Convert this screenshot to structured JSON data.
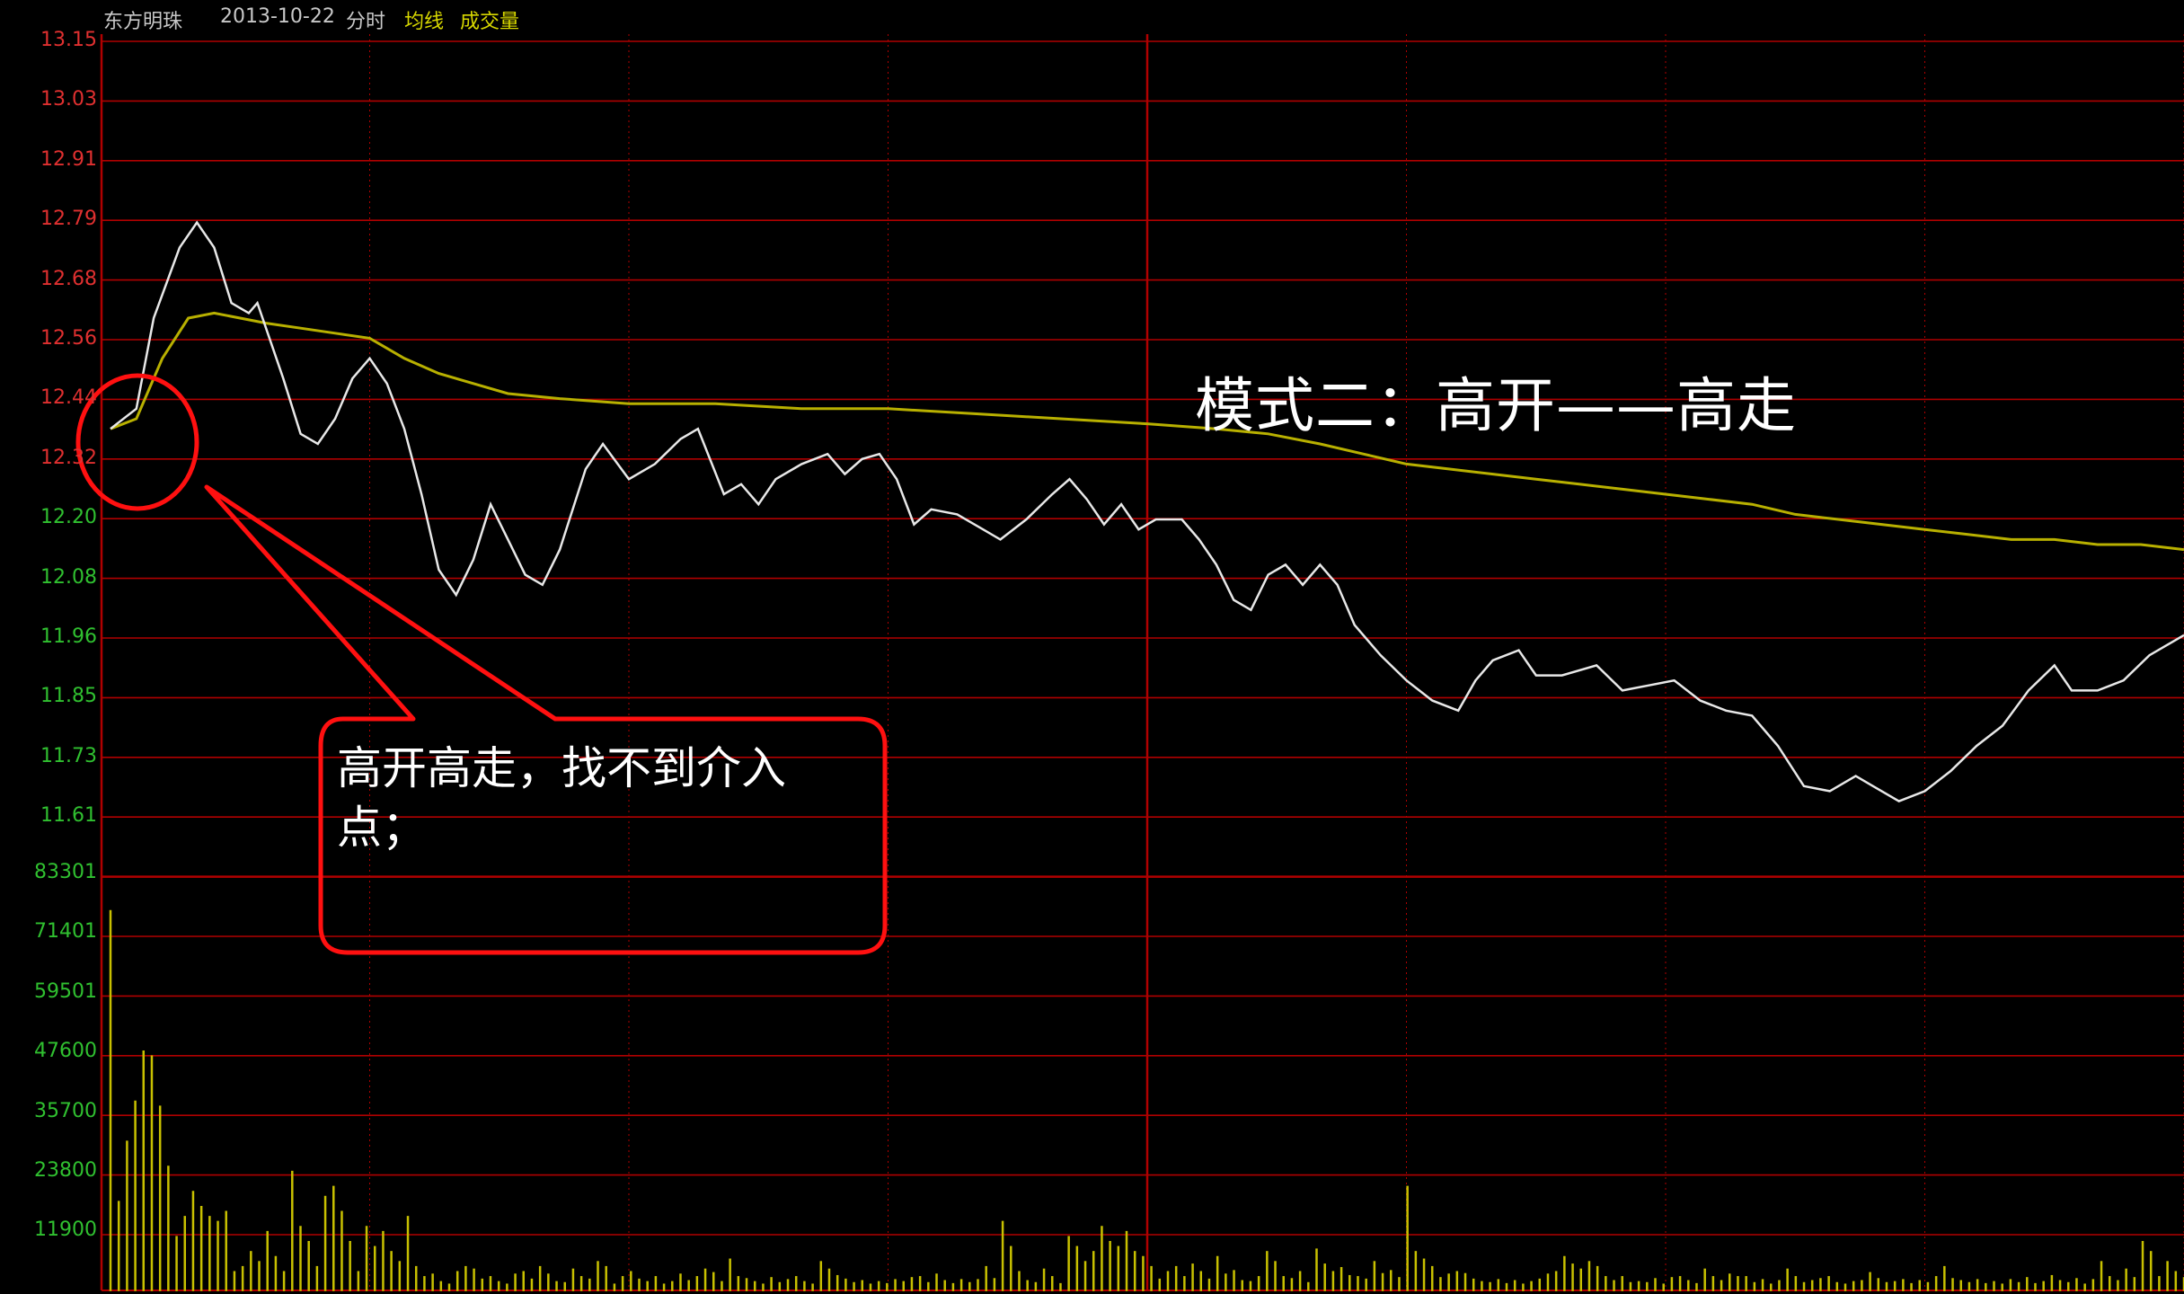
{
  "header": {
    "stock_name": "东方明珠",
    "date": "2013-10-22",
    "view_label": "分时",
    "avg_label": "均线",
    "volume_label": "成交量"
  },
  "annotations": {
    "title": "模式二：高开——高走",
    "callout": "高开高走，找不到介入点；"
  },
  "colors": {
    "background": "#000000",
    "grid": "#b00000",
    "price_line": "#e8e8e8",
    "avg_line": "#b8b000",
    "volume_bar": "#c8c000",
    "up_label": "#e03030",
    "down_label": "#30c030",
    "annotation": "#ff1010"
  },
  "chart_data": {
    "type": "line",
    "price_axis": {
      "ticks": [
        "13.15",
        "13.03",
        "12.91",
        "12.79",
        "12.68",
        "12.56",
        "12.44",
        "12.32",
        "12.20",
        "12.08",
        "11.96",
        "11.85",
        "11.73",
        "11.61"
      ],
      "ylim": [
        11.49,
        13.15
      ],
      "prev_close": 12.32
    },
    "volume_axis": {
      "ticks": [
        "83301",
        "71401",
        "59501",
        "47600",
        "35700",
        "23800",
        "11900"
      ],
      "ylim": [
        0,
        83301
      ]
    },
    "x": {
      "minutes": 240,
      "ticks_every": 30
    },
    "series": [
      {
        "key": "price",
        "points": [
          [
            0,
            12.38
          ],
          [
            3,
            12.42
          ],
          [
            5,
            12.6
          ],
          [
            8,
            12.74
          ],
          [
            10,
            12.79
          ],
          [
            12,
            12.74
          ],
          [
            14,
            12.63
          ],
          [
            16,
            12.61
          ],
          [
            17,
            12.63
          ],
          [
            20,
            12.48
          ],
          [
            22,
            12.37
          ],
          [
            24,
            12.35
          ],
          [
            26,
            12.4
          ],
          [
            28,
            12.48
          ],
          [
            30,
            12.52
          ],
          [
            32,
            12.47
          ],
          [
            34,
            12.38
          ],
          [
            36,
            12.25
          ],
          [
            38,
            12.1
          ],
          [
            40,
            12.05
          ],
          [
            42,
            12.12
          ],
          [
            44,
            12.23
          ],
          [
            46,
            12.16
          ],
          [
            48,
            12.09
          ],
          [
            50,
            12.07
          ],
          [
            52,
            12.14
          ],
          [
            55,
            12.3
          ],
          [
            57,
            12.35
          ],
          [
            60,
            12.28
          ],
          [
            63,
            12.31
          ],
          [
            66,
            12.36
          ],
          [
            68,
            12.38
          ],
          [
            71,
            12.25
          ],
          [
            73,
            12.27
          ],
          [
            75,
            12.23
          ],
          [
            77,
            12.28
          ],
          [
            80,
            12.31
          ],
          [
            83,
            12.33
          ],
          [
            85,
            12.29
          ],
          [
            87,
            12.32
          ],
          [
            89,
            12.33
          ],
          [
            91,
            12.28
          ],
          [
            93,
            12.19
          ],
          [
            95,
            12.22
          ],
          [
            98,
            12.21
          ],
          [
            101,
            12.18
          ],
          [
            103,
            12.16
          ],
          [
            106,
            12.2
          ],
          [
            109,
            12.25
          ],
          [
            111,
            12.28
          ],
          [
            113,
            12.24
          ],
          [
            115,
            12.19
          ],
          [
            117,
            12.23
          ],
          [
            119,
            12.18
          ],
          [
            121,
            12.2
          ],
          [
            124,
            12.2
          ],
          [
            126,
            12.16
          ],
          [
            128,
            12.11
          ],
          [
            130,
            12.04
          ],
          [
            132,
            12.02
          ],
          [
            134,
            12.09
          ],
          [
            136,
            12.11
          ],
          [
            138,
            12.07
          ],
          [
            140,
            12.11
          ],
          [
            142,
            12.07
          ],
          [
            144,
            11.99
          ],
          [
            147,
            11.93
          ],
          [
            150,
            11.88
          ],
          [
            153,
            11.84
          ],
          [
            156,
            11.82
          ],
          [
            158,
            11.88
          ],
          [
            160,
            11.92
          ],
          [
            163,
            11.94
          ],
          [
            165,
            11.89
          ],
          [
            168,
            11.89
          ],
          [
            172,
            11.91
          ],
          [
            175,
            11.86
          ],
          [
            178,
            11.87
          ],
          [
            181,
            11.88
          ],
          [
            184,
            11.84
          ],
          [
            187,
            11.82
          ],
          [
            190,
            11.81
          ],
          [
            193,
            11.75
          ],
          [
            196,
            11.67
          ],
          [
            199,
            11.66
          ],
          [
            202,
            11.69
          ],
          [
            204,
            11.67
          ],
          [
            207,
            11.64
          ],
          [
            210,
            11.66
          ],
          [
            213,
            11.7
          ],
          [
            216,
            11.75
          ],
          [
            219,
            11.79
          ],
          [
            222,
            11.86
          ],
          [
            225,
            11.91
          ],
          [
            227,
            11.86
          ],
          [
            230,
            11.86
          ],
          [
            233,
            11.88
          ],
          [
            236,
            11.93
          ],
          [
            240,
            11.97
          ]
        ]
      },
      {
        "key": "average",
        "points": [
          [
            0,
            12.38
          ],
          [
            3,
            12.4
          ],
          [
            6,
            12.52
          ],
          [
            9,
            12.6
          ],
          [
            12,
            12.61
          ],
          [
            15,
            12.6
          ],
          [
            18,
            12.59
          ],
          [
            22,
            12.58
          ],
          [
            26,
            12.57
          ],
          [
            30,
            12.56
          ],
          [
            34,
            12.52
          ],
          [
            38,
            12.49
          ],
          [
            42,
            12.47
          ],
          [
            46,
            12.45
          ],
          [
            52,
            12.44
          ],
          [
            60,
            12.43
          ],
          [
            70,
            12.43
          ],
          [
            80,
            12.42
          ],
          [
            90,
            12.42
          ],
          [
            100,
            12.41
          ],
          [
            110,
            12.4
          ],
          [
            120,
            12.39
          ],
          [
            128,
            12.38
          ],
          [
            134,
            12.37
          ],
          [
            140,
            12.35
          ],
          [
            145,
            12.33
          ],
          [
            150,
            12.31
          ],
          [
            155,
            12.3
          ],
          [
            160,
            12.29
          ],
          [
            165,
            12.28
          ],
          [
            170,
            12.27
          ],
          [
            175,
            12.26
          ],
          [
            180,
            12.25
          ],
          [
            185,
            12.24
          ],
          [
            190,
            12.23
          ],
          [
            195,
            12.21
          ],
          [
            200,
            12.2
          ],
          [
            205,
            12.19
          ],
          [
            210,
            12.18
          ],
          [
            215,
            12.17
          ],
          [
            220,
            12.16
          ],
          [
            225,
            12.16
          ],
          [
            230,
            12.15
          ],
          [
            235,
            12.15
          ],
          [
            240,
            12.14
          ]
        ]
      }
    ],
    "volume": [
      76000,
      18000,
      30000,
      38000,
      48000,
      47000,
      37000,
      25000,
      11000,
      15000,
      20000,
      17000,
      15000,
      14000,
      16000,
      4000,
      5000,
      8000,
      6000,
      12000,
      7000,
      4000,
      24000,
      13000,
      10000,
      5000,
      19000,
      21000,
      16000,
      10000,
      4000,
      13000,
      9000,
      12000,
      8000,
      6000,
      15000,
      5000,
      3000,
      3500,
      2000,
      1500,
      4000,
      5000,
      4500,
      2500,
      3000,
      2000,
      1500,
      3500,
      4000,
      2500,
      5000,
      3500,
      2000,
      1800,
      4500,
      3000,
      2500,
      6000,
      5000,
      1500,
      3000,
      4000,
      2500,
      2000,
      3000,
      1500,
      2000,
      3500,
      2200,
      3000,
      4500,
      3800,
      2000,
      6500,
      3000,
      2600,
      2000,
      1500,
      2800,
      1800,
      2400,
      3000,
      2000,
      1500,
      6000,
      4500,
      3200,
      2500,
      1800,
      2200,
      1500,
      2000,
      1600,
      2400,
      2000,
      2800,
      3000,
      1800,
      3500,
      2200,
      1600,
      2400,
      1800,
      2400,
      5000,
      2600,
      14000,
      9000,
      4000,
      2200,
      1800,
      4500,
      3000,
      1600,
      11000,
      9000,
      6000,
      8000,
      13000,
      10000,
      9000,
      12000,
      8000,
      7000,
      5000,
      2500,
      4000,
      5000,
      3000,
      5500,
      4000,
      2500,
      7000,
      3500,
      4200,
      2200,
      2000,
      3000,
      8000,
      6000,
      3000,
      2600,
      4000,
      1800,
      8500,
      5500,
      4000,
      4800,
      3200,
      3000,
      2500,
      6000,
      3600,
      4200,
      2800,
      21000,
      8000,
      6500,
      5000,
      2800,
      3500,
      4000,
      3600,
      2500,
      2000,
      1800,
      2400,
      1600,
      2200,
      1500,
      2000,
      2500,
      3500,
      4000,
      7000,
      5500,
      4500,
      6000,
      5000,
      3000,
      2200,
      3000,
      1800,
      2000,
      1800,
      2600,
      1500,
      2800,
      3000,
      2200,
      1600,
      4500,
      3000,
      2200,
      3500,
      3000,
      3000,
      1800,
      2400,
      1500,
      2200,
      4500,
      3000,
      1800,
      2200,
      2600,
      3000,
      1800,
      1500,
      2000,
      2200,
      3800,
      2600,
      1800,
      2000,
      2400,
      1600,
      2200,
      1800,
      3000,
      5000,
      2600,
      2200,
      1800,
      2400,
      1600,
      2000,
      1500,
      2400,
      1800,
      2800,
      1600,
      2000,
      3200,
      2200,
      1800,
      2600,
      1500,
      2400,
      6000,
      3000,
      2200,
      4500,
      2800,
      10000,
      8000,
      3000,
      6000,
      4000,
      2800
    ]
  }
}
